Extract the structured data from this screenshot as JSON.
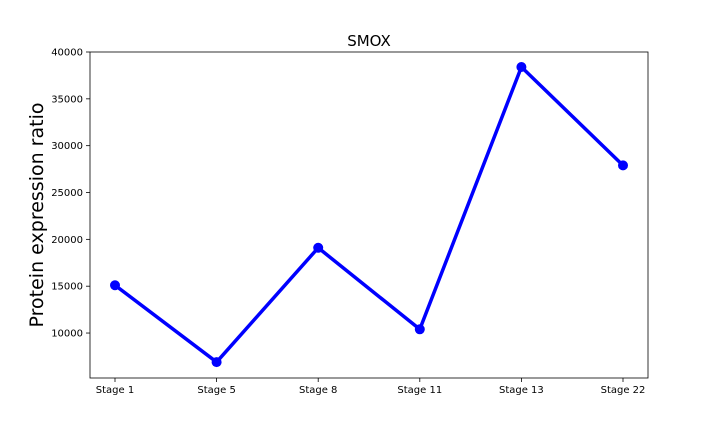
{
  "chart_data": {
    "type": "line",
    "title": "SMOX",
    "xlabel": "",
    "ylabel": "Protein expression ratio",
    "categories": [
      "Stage 1",
      "Stage 5",
      "Stage 8",
      "Stage 11",
      "Stage 13",
      "Stage 22"
    ],
    "series": [
      {
        "values": [
          15100,
          6900,
          19100,
          10400,
          38400,
          27900
        ],
        "color": "#0000ff",
        "marker": "circle"
      }
    ],
    "ylim": [
      5200,
      40000
    ],
    "yticks": [
      10000,
      15000,
      20000,
      25000,
      30000,
      35000,
      40000
    ],
    "grid": false,
    "legend": "none"
  }
}
